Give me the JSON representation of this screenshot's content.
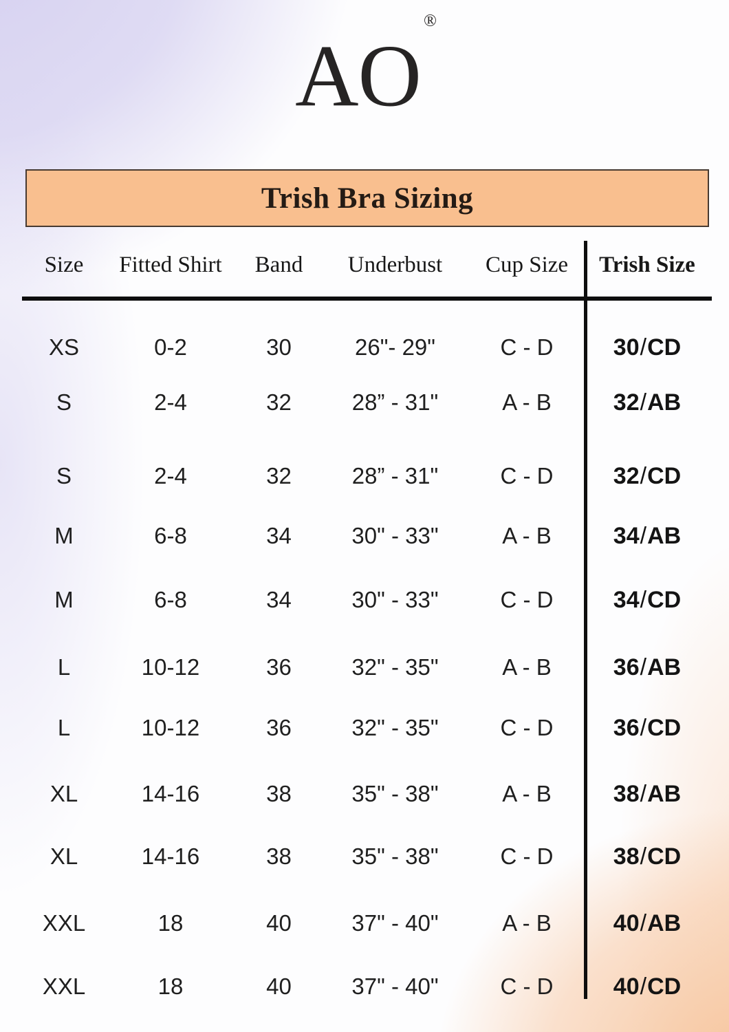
{
  "brand": {
    "name": "AO",
    "registered_mark": "®"
  },
  "banner": {
    "title": "Trish Bra Sizing"
  },
  "colors": {
    "banner_bg": "#f9bf8f",
    "banner_border": "#473a31",
    "text": "#1f1f1f",
    "rule": "#0e0e0e",
    "lavender_blob": "#d5d0f0",
    "peach_blob": "#f6c196"
  },
  "chart_data": {
    "type": "table",
    "title": "Trish Bra Sizing",
    "columns": [
      "Size",
      "Fitted Shirt",
      "Band",
      "Underbust",
      "Cup Size",
      "Trish Size"
    ],
    "rows": [
      [
        "XS",
        "0-2",
        "30",
        "26\"- 29\"",
        "C - D",
        "30/CD"
      ],
      [
        "S",
        "2-4",
        "32",
        "28” - 31\"",
        "A - B",
        "32/AB"
      ],
      [
        "S",
        "2-4",
        "32",
        "28” - 31\"",
        "C - D",
        "32/CD"
      ],
      [
        "M",
        "6-8",
        "34",
        "30\" - 33\"",
        "A - B",
        "34/AB"
      ],
      [
        "M",
        "6-8",
        "34",
        "30\" - 33\"",
        "C - D",
        "34/CD"
      ],
      [
        "L",
        "10-12",
        "36",
        "32\" - 35\"",
        "A - B",
        "36/AB"
      ],
      [
        "L",
        "10-12",
        "36",
        "32\" - 35\"",
        "C - D",
        "36/CD"
      ],
      [
        "XL",
        "14-16",
        "38",
        "35\" - 38\"",
        "A - B",
        "38/AB"
      ],
      [
        "XL",
        "14-16",
        "38",
        "35\" - 38\"",
        "C - D",
        "38/CD"
      ],
      [
        "XXL",
        "18",
        "40",
        "37\" - 40\"",
        "A - B",
        "40/AB"
      ],
      [
        "XXL",
        "18",
        "40",
        "37\" - 40\"",
        "C - D",
        "40/CD"
      ]
    ]
  }
}
